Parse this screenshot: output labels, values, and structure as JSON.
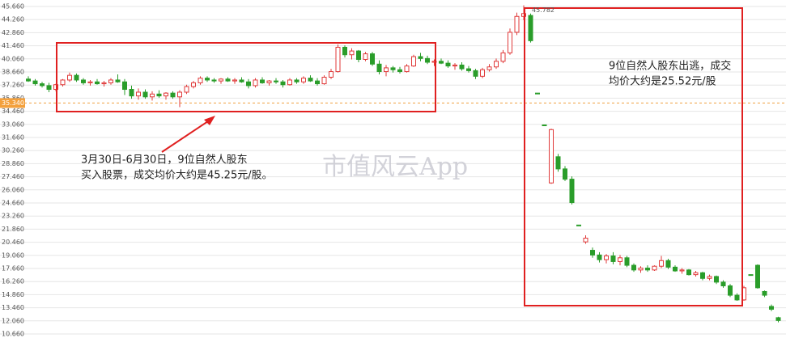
{
  "chart_data": {
    "type": "candlestick",
    "up_color": "#e03a3a",
    "down_color": "#2a9d2a",
    "grid": true,
    "ylim": [
      10.66,
      45.66
    ],
    "yticks": [
      {
        "value": 45.66,
        "label": "45.660"
      },
      {
        "value": 44.26,
        "label": "44.260"
      },
      {
        "value": 42.86,
        "label": "42.860"
      },
      {
        "value": 41.46,
        "label": "41.460"
      },
      {
        "value": 40.06,
        "label": "40.060"
      },
      {
        "value": 38.66,
        "label": "38.660"
      },
      {
        "value": 37.26,
        "label": "37.260"
      },
      {
        "value": 35.86,
        "label": "35.860"
      },
      {
        "value": 34.46,
        "label": "34.460"
      },
      {
        "value": 33.06,
        "label": "33.060"
      },
      {
        "value": 31.66,
        "label": "31.660"
      },
      {
        "value": 30.26,
        "label": "30.260"
      },
      {
        "value": 28.86,
        "label": "28.860"
      },
      {
        "value": 27.46,
        "label": "27.460"
      },
      {
        "value": 26.06,
        "label": "26.060"
      },
      {
        "value": 24.66,
        "label": "24.660"
      },
      {
        "value": 23.26,
        "label": "23.260"
      },
      {
        "value": 21.86,
        "label": "21.860"
      },
      {
        "value": 20.46,
        "label": "20.460"
      },
      {
        "value": 19.06,
        "label": "19.060"
      },
      {
        "value": 17.66,
        "label": "17.660"
      },
      {
        "value": 16.26,
        "label": "16.260"
      },
      {
        "value": 14.86,
        "label": "14.860"
      },
      {
        "value": 13.46,
        "label": "13.460"
      },
      {
        "value": 12.06,
        "label": "12.060"
      },
      {
        "value": 10.66,
        "label": "10.660"
      }
    ],
    "current_price": {
      "value": 35.34,
      "label": "35.340"
    },
    "max_value": 45.782,
    "annotations": [
      "3月30日-6月30日，9位自然人股东",
      "买入股票，成交均价大约是45.25元/股。",
      "9位自然人股东出逃，成交",
      "均价大约是25.52元/股"
    ],
    "watermark": "市值风云App",
    "candles": [
      [
        37.9,
        38.2,
        37.6,
        37.7
      ],
      [
        37.7,
        37.9,
        37.2,
        37.4
      ],
      [
        37.4,
        37.6,
        37.0,
        37.2
      ],
      [
        37.2,
        37.5,
        36.5,
        36.8
      ],
      [
        36.8,
        37.4,
        36.6,
        37.3
      ],
      [
        37.3,
        37.9,
        37.1,
        37.8
      ],
      [
        37.8,
        38.6,
        37.6,
        38.3
      ],
      [
        38.3,
        38.5,
        37.6,
        37.8
      ],
      [
        37.8,
        38.0,
        37.3,
        37.5
      ],
      [
        37.5,
        37.8,
        37.2,
        37.6
      ],
      [
        37.6,
        37.9,
        37.3,
        37.4
      ],
      [
        37.4,
        37.7,
        37.1,
        37.5
      ],
      [
        37.5,
        38.0,
        37.3,
        37.8
      ],
      [
        37.8,
        38.4,
        37.5,
        37.6
      ],
      [
        37.6,
        37.9,
        36.2,
        36.8
      ],
      [
        36.8,
        37.2,
        35.8,
        36.1
      ],
      [
        36.1,
        36.9,
        35.7,
        36.5
      ],
      [
        36.5,
        36.8,
        35.8,
        36.0
      ],
      [
        36.0,
        36.6,
        35.6,
        36.3
      ],
      [
        36.3,
        36.7,
        35.9,
        36.1
      ],
      [
        36.1,
        36.5,
        35.7,
        36.4
      ],
      [
        36.4,
        36.6,
        35.8,
        36.0
      ],
      [
        36.0,
        36.7,
        34.9,
        36.5
      ],
      [
        36.5,
        37.3,
        36.3,
        37.1
      ],
      [
        37.1,
        37.7,
        36.9,
        37.5
      ],
      [
        37.5,
        38.2,
        37.3,
        38.0
      ],
      [
        38.0,
        38.2,
        37.6,
        37.8
      ],
      [
        37.8,
        38.0,
        37.5,
        37.7
      ],
      [
        37.7,
        38.0,
        37.4,
        37.9
      ],
      [
        37.9,
        38.1,
        37.6,
        37.7
      ],
      [
        37.7,
        38.0,
        37.4,
        37.8
      ],
      [
        37.8,
        38.1,
        37.5,
        37.6
      ],
      [
        37.6,
        37.9,
        36.9,
        37.2
      ],
      [
        37.2,
        38.0,
        37.0,
        37.8
      ],
      [
        37.8,
        38.1,
        37.4,
        37.5
      ],
      [
        37.5,
        37.8,
        37.2,
        37.7
      ],
      [
        37.7,
        38.0,
        37.4,
        37.6
      ],
      [
        37.6,
        37.8,
        37.0,
        37.3
      ],
      [
        37.3,
        38.0,
        37.2,
        37.8
      ],
      [
        37.8,
        38.0,
        37.4,
        37.6
      ],
      [
        37.6,
        38.2,
        37.4,
        38.0
      ],
      [
        38.0,
        38.3,
        37.6,
        37.7
      ],
      [
        37.7,
        38.0,
        37.2,
        37.4
      ],
      [
        37.4,
        38.3,
        37.3,
        38.1
      ],
      [
        38.1,
        39.0,
        37.9,
        38.7
      ],
      [
        38.7,
        41.6,
        38.6,
        41.3
      ],
      [
        41.3,
        41.5,
        40.2,
        40.5
      ],
      [
        40.5,
        41.2,
        40.0,
        40.9
      ],
      [
        40.9,
        41.0,
        39.7,
        40.0
      ],
      [
        40.0,
        40.8,
        39.8,
        40.6
      ],
      [
        40.6,
        40.8,
        39.3,
        39.5
      ],
      [
        39.5,
        39.9,
        38.4,
        38.7
      ],
      [
        38.7,
        39.4,
        38.2,
        39.1
      ],
      [
        39.1,
        39.3,
        38.6,
        38.9
      ],
      [
        38.9,
        39.2,
        38.5,
        38.7
      ],
      [
        38.7,
        39.5,
        38.6,
        39.3
      ],
      [
        39.3,
        40.5,
        39.2,
        40.3
      ],
      [
        40.3,
        40.7,
        39.8,
        40.1
      ],
      [
        40.1,
        40.4,
        39.5,
        39.7
      ],
      [
        39.7,
        40.0,
        39.3,
        39.8
      ],
      [
        39.8,
        40.1,
        39.5,
        39.6
      ],
      [
        39.6,
        39.9,
        39.1,
        39.3
      ],
      [
        39.3,
        39.6,
        38.9,
        39.4
      ],
      [
        39.4,
        39.7,
        38.8,
        39.0
      ],
      [
        39.0,
        39.3,
        38.6,
        38.8
      ],
      [
        38.8,
        39.0,
        37.9,
        38.2
      ],
      [
        38.2,
        39.1,
        38.0,
        38.9
      ],
      [
        38.9,
        39.5,
        38.7,
        39.2
      ],
      [
        39.2,
        40.1,
        39.0,
        39.8
      ],
      [
        39.8,
        41.0,
        39.6,
        40.7
      ],
      [
        40.7,
        43.3,
        40.5,
        42.9
      ],
      [
        42.9,
        45.0,
        42.6,
        44.6
      ],
      [
        44.6,
        45.782,
        44.2,
        44.9
      ],
      [
        44.7,
        44.9,
        41.8,
        42.0
      ],
      [
        36.4,
        36.4,
        36.4,
        36.4
      ],
      [
        33.0,
        33.0,
        33.0,
        33.0
      ],
      [
        26.8,
        32.6,
        26.7,
        32.5
      ],
      [
        29.6,
        29.9,
        28.0,
        28.3
      ],
      [
        28.3,
        28.6,
        27.0,
        27.2
      ],
      [
        27.2,
        27.5,
        24.5,
        24.7
      ],
      [
        22.3,
        22.3,
        22.3,
        22.3
      ],
      [
        20.5,
        21.2,
        20.3,
        20.9
      ],
      [
        19.6,
        19.9,
        18.8,
        19.1
      ],
      [
        19.1,
        19.4,
        18.3,
        18.6
      ],
      [
        18.6,
        19.2,
        18.2,
        19.0
      ],
      [
        19.0,
        19.4,
        18.1,
        18.4
      ],
      [
        18.4,
        19.1,
        18.0,
        18.8
      ],
      [
        18.8,
        19.0,
        17.8,
        18.0
      ],
      [
        18.0,
        18.2,
        17.3,
        17.5
      ],
      [
        17.5,
        17.9,
        17.2,
        17.7
      ],
      [
        17.7,
        18.0,
        17.3,
        17.5
      ],
      [
        17.5,
        18.0,
        17.4,
        17.9
      ],
      [
        17.9,
        19.0,
        17.7,
        18.5
      ],
      [
        18.5,
        18.7,
        17.6,
        17.8
      ],
      [
        17.8,
        18.0,
        17.3,
        17.4
      ],
      [
        17.4,
        17.7,
        17.1,
        17.5
      ],
      [
        17.5,
        17.6,
        16.9,
        17.0
      ],
      [
        17.0,
        17.4,
        16.8,
        17.2
      ],
      [
        17.2,
        17.3,
        16.4,
        16.6
      ],
      [
        16.6,
        17.0,
        16.4,
        16.8
      ],
      [
        16.8,
        16.9,
        16.0,
        16.2
      ],
      [
        16.2,
        16.4,
        15.6,
        15.8
      ],
      [
        15.8,
        16.0,
        14.6,
        14.8
      ],
      [
        14.8,
        15.0,
        14.2,
        14.3
      ],
      [
        14.3,
        15.8,
        14.2,
        15.6
      ],
      [
        17.0,
        17.0,
        17.0,
        17.0
      ],
      [
        18.0,
        18.1,
        15.5,
        15.6
      ],
      [
        15.2,
        15.3,
        14.6,
        14.8
      ],
      [
        13.6,
        13.8,
        13.1,
        13.3
      ],
      [
        12.4,
        12.5,
        11.9,
        12.1
      ]
    ]
  }
}
